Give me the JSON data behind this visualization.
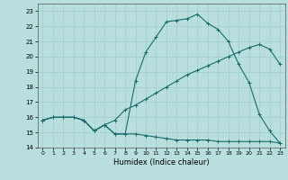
{
  "xlabel": "Humidex (Indice chaleur)",
  "xlim": [
    -0.5,
    23.5
  ],
  "ylim": [
    14,
    23.5
  ],
  "yticks": [
    14,
    15,
    16,
    17,
    18,
    19,
    20,
    21,
    22,
    23
  ],
  "xticks": [
    0,
    1,
    2,
    3,
    4,
    5,
    6,
    7,
    8,
    9,
    10,
    11,
    12,
    13,
    14,
    15,
    16,
    17,
    18,
    19,
    20,
    21,
    22,
    23
  ],
  "bg_color": "#b8dede",
  "grid_color": "#9ecece",
  "line_color": "#1a6b6b",
  "series1_x": [
    0,
    1,
    2,
    3,
    4,
    5,
    6,
    7,
    8,
    9,
    10,
    11,
    12,
    13,
    14,
    15,
    16,
    17,
    18,
    19,
    20,
    21,
    22,
    23
  ],
  "series1_y": [
    15.8,
    16.0,
    16.0,
    16.0,
    15.8,
    15.1,
    15.5,
    14.9,
    14.9,
    14.9,
    14.8,
    14.7,
    14.6,
    14.5,
    14.5,
    14.5,
    14.5,
    14.4,
    14.4,
    14.4,
    14.4,
    14.4,
    14.4,
    14.3
  ],
  "series2_x": [
    0,
    1,
    2,
    3,
    4,
    5,
    6,
    7,
    8,
    9,
    10,
    11,
    12,
    13,
    14,
    15,
    16,
    17,
    18,
    19,
    20,
    21,
    22,
    23
  ],
  "series2_y": [
    15.8,
    16.0,
    16.0,
    16.0,
    15.8,
    15.1,
    15.5,
    15.8,
    16.5,
    16.8,
    17.2,
    17.6,
    18.0,
    18.4,
    18.8,
    19.1,
    19.4,
    19.7,
    20.0,
    20.3,
    20.6,
    20.8,
    20.5,
    19.5
  ],
  "series3_x": [
    0,
    1,
    2,
    3,
    4,
    5,
    6,
    7,
    8,
    9,
    10,
    11,
    12,
    13,
    14,
    15,
    16,
    17,
    18,
    19,
    20,
    21,
    22,
    23
  ],
  "series3_y": [
    15.8,
    16.0,
    16.0,
    16.0,
    15.8,
    15.1,
    15.5,
    14.9,
    14.9,
    18.4,
    20.3,
    21.3,
    22.3,
    22.4,
    22.5,
    22.8,
    22.2,
    21.8,
    21.0,
    19.5,
    18.3,
    16.2,
    15.1,
    14.3
  ]
}
